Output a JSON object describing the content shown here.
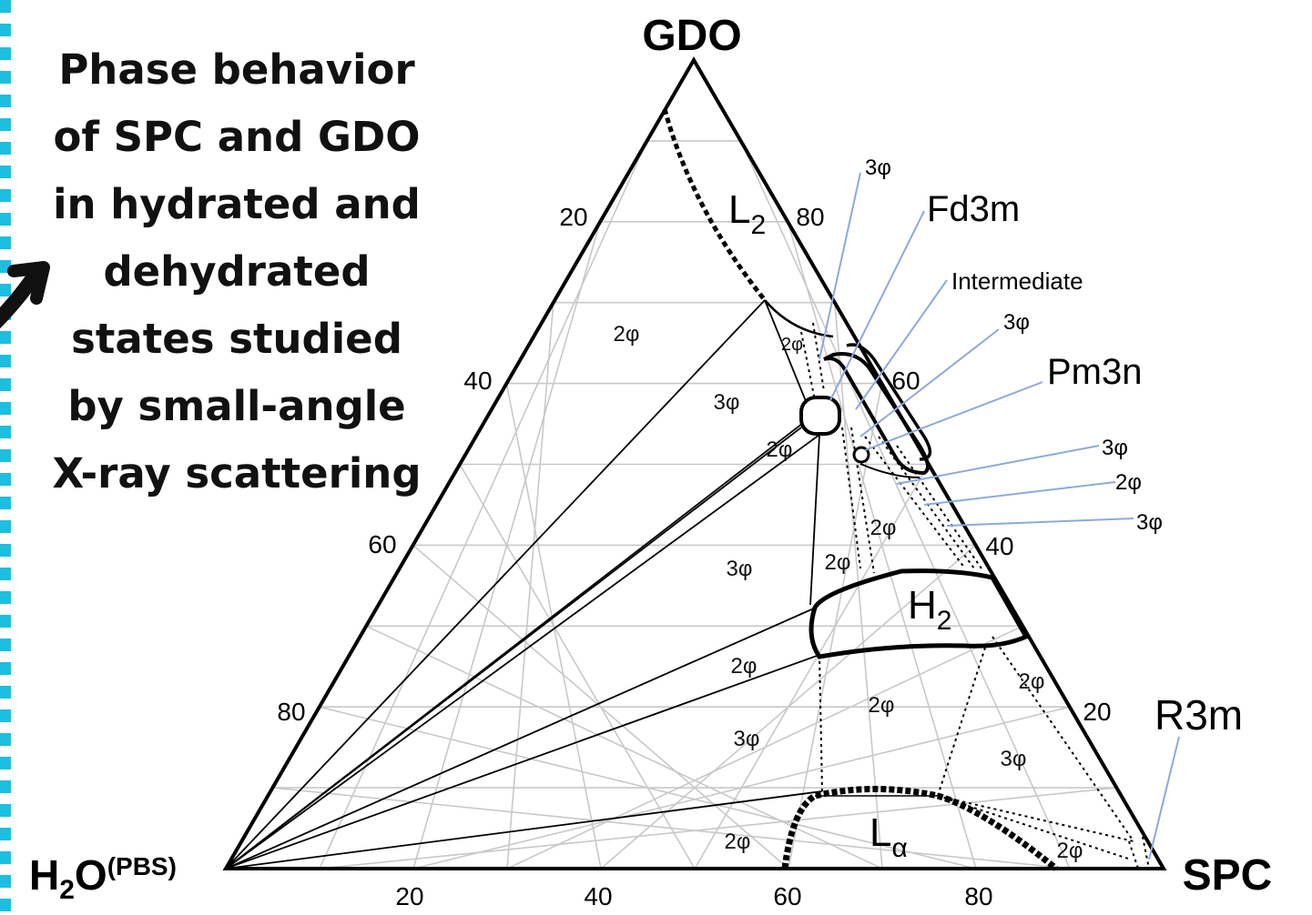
{
  "caption": {
    "lines": [
      "Phase behavior",
      "of SPC and GDO",
      "in hydrated and",
      "dehydrated",
      "states studied",
      "by small-angle",
      "X-ray scattering"
    ]
  },
  "diagram": {
    "vertices": {
      "top": "GDO",
      "left_main": "H",
      "left_sub": "2",
      "left_rest": "O",
      "left_sup": "(PBS)",
      "right": "SPC"
    },
    "ticks": {
      "bottom": [
        "20",
        "40",
        "60",
        "80"
      ],
      "left": [
        "20",
        "40",
        "60",
        "80"
      ],
      "right": [
        "80",
        "60",
        "40",
        "20"
      ]
    },
    "phases": {
      "l2_main": "L",
      "l2_sub": "2",
      "h2_main": "H",
      "h2_sub": "2",
      "la_main": "L",
      "la_sub": "α"
    },
    "region_labels": {
      "r1": "2φ",
      "r2": "2φ",
      "r3": "3φ",
      "r4": "2φ",
      "r5": "2φ",
      "r6": "3φ",
      "r7": "2φ",
      "r8": "2φ",
      "r9": "2φ",
      "r10": "2φ",
      "r11": "3φ",
      "r12": "3φ",
      "r13": "2φ",
      "r14": "2φ"
    },
    "callouts": {
      "c1": "3φ",
      "c2": "Fd3m",
      "c3": "Intermediate",
      "c4": "3φ",
      "c5": "Pm3n",
      "c6": "3φ",
      "c7": "2φ",
      "c8": "3φ",
      "c9": "R3m"
    },
    "colors": {
      "outline": "#000000",
      "grid": "#c8c8c8",
      "callout_line": "#8ea9dc",
      "accent_dashes": "#1cbfe0"
    }
  }
}
